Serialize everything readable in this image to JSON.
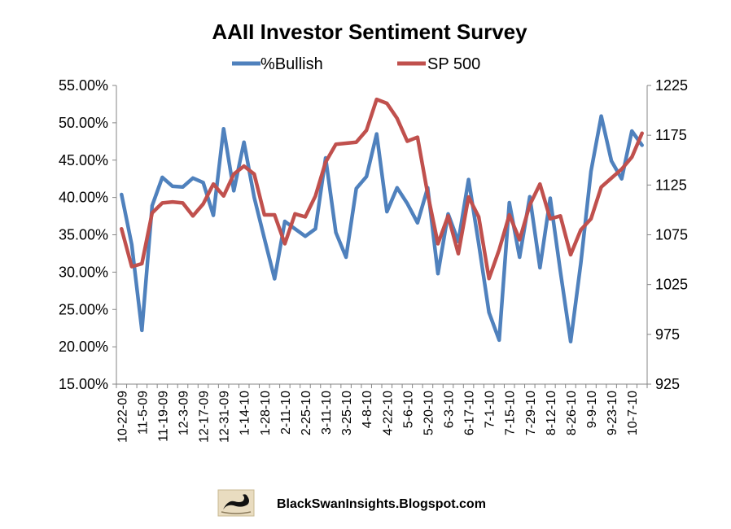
{
  "chart_data": {
    "type": "line",
    "title": "AAII Investor Sentiment Survey",
    "xlabel": "",
    "ylabel": "",
    "legend_position": "top",
    "grid": false,
    "x_tick_labels": [
      "10-22-09",
      "11-5-09",
      "11-19-09",
      "12-3-09",
      "12-17-09",
      "12-31-09",
      "1-14-10",
      "1-28-10",
      "2-11-10",
      "2-25-10",
      "3-11-10",
      "3-25-10",
      "4-8-10",
      "4-22-10",
      "5-6-10",
      "5-20-10",
      "6-3-10",
      "6-17-10",
      "7-1-10",
      "7-15-10",
      "7-29-10",
      "8-12-10",
      "8-26-10",
      "9-9-10",
      "9-23-10",
      "10-7-10"
    ],
    "y_left": {
      "min": 15,
      "max": 55,
      "step": 5,
      "tick_labels": [
        "15.00%",
        "20.00%",
        "25.00%",
        "30.00%",
        "35.00%",
        "40.00%",
        "45.00%",
        "50.00%",
        "55.00%"
      ]
    },
    "y_right": {
      "min": 925,
      "max": 1225,
      "step": 50,
      "tick_labels": [
        "925",
        "975",
        "1025",
        "1075",
        "1125",
        "1175",
        "1225"
      ]
    },
    "series": [
      {
        "name": "%Bullish",
        "axis": "left",
        "color": "#4f81bd",
        "values": [
          40.4,
          33.7,
          22.2,
          38.9,
          42.7,
          41.5,
          41.4,
          42.6,
          42.0,
          37.6,
          49.2,
          40.9,
          47.4,
          40.0,
          34.5,
          29.1,
          36.8,
          35.8,
          34.8,
          35.8,
          45.3,
          35.3,
          32.0,
          41.2,
          42.8,
          48.5,
          38.1,
          41.3,
          39.2,
          36.6,
          41.3,
          29.8,
          37.8,
          34.1,
          42.4,
          33.8,
          24.6,
          20.9,
          39.3,
          32.0,
          40.1,
          30.6,
          39.9,
          30.1,
          20.7,
          31.2,
          43.5,
          50.9,
          44.9,
          42.5,
          48.9,
          47.0
        ]
      },
      {
        "name": "SP 500",
        "axis": "right",
        "color": "#c0504d",
        "values": [
          1081,
          1043,
          1046,
          1097,
          1107,
          1108,
          1107,
          1094,
          1106,
          1126,
          1114,
          1136,
          1144,
          1136,
          1095,
          1095,
          1066,
          1096,
          1093,
          1114,
          1148,
          1166,
          1167,
          1168,
          1180,
          1211,
          1207,
          1192,
          1169,
          1173,
          1116,
          1066,
          1094,
          1056,
          1113,
          1093,
          1031,
          1060,
          1095,
          1070,
          1105,
          1126,
          1091,
          1094,
          1055,
          1080,
          1091,
          1123,
          1132,
          1141,
          1153,
          1177
        ]
      }
    ]
  },
  "footer": {
    "text": "BlackSwanInsights.Blogspot.com",
    "logo_icon": "black-swan-icon"
  }
}
